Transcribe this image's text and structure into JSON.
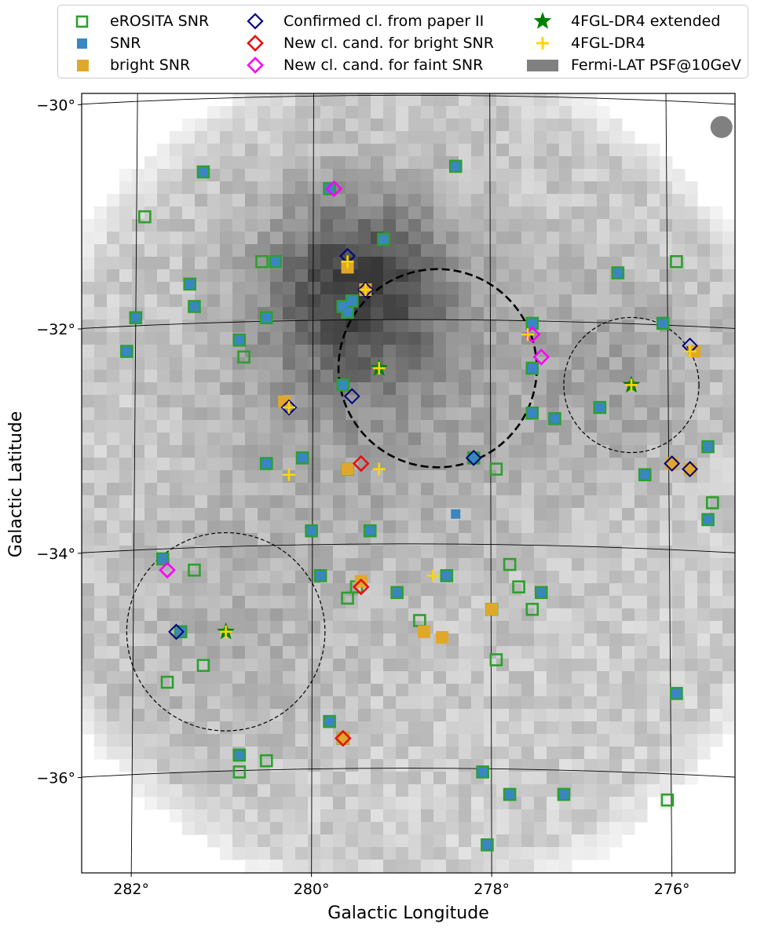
{
  "chart_data": {
    "type": "scatter",
    "xlabel": "Galactic Longitude",
    "ylabel": "Galactic Latitude",
    "xlim": [
      282.55,
      275.3
    ],
    "ylim": [
      -36.85,
      -29.9
    ],
    "x_ticks": [
      {
        "value": 282,
        "label": "282°"
      },
      {
        "value": 280,
        "label": "280°"
      },
      {
        "value": 278,
        "label": "278°"
      },
      {
        "value": 276,
        "label": "276°"
      }
    ],
    "y_ticks": [
      {
        "value": -30,
        "label": "−30°"
      },
      {
        "value": -32,
        "label": "−32°"
      },
      {
        "value": -34,
        "label": "−34°"
      },
      {
        "value": -36,
        "label": "−36°"
      }
    ],
    "grid": true,
    "background": "grayscale counts map (Fermi-LAT)",
    "psf_marker": {
      "l": 275.45,
      "b": -30.2,
      "color": "#808080"
    },
    "regions": [
      {
        "l": 278.6,
        "b": -32.35,
        "radius": 1.1,
        "style": "thick-dashed"
      },
      {
        "l": 276.45,
        "b": -32.5,
        "radius": 0.75,
        "style": "thin-dashed"
      },
      {
        "l": 280.95,
        "b": -34.7,
        "radius": 1.1,
        "style": "thin-dashed"
      }
    ],
    "legend": {
      "placement": "top, above plot, 3 columns",
      "entries": [
        {
          "key": "erosita",
          "label": "eROSITA SNR",
          "color": "#2ca02c",
          "marker": "open-square"
        },
        {
          "key": "snr",
          "label": "SNR",
          "color": "#3a86c0",
          "marker": "filled-square"
        },
        {
          "key": "bright",
          "label": "bright SNR",
          "color": "#e0a82a",
          "marker": "filled-square"
        },
        {
          "key": "confirmed",
          "label": "Confirmed cl. from paper II",
          "color": "#000080",
          "marker": "open-diamond"
        },
        {
          "key": "cand_bright",
          "label": "New cl. cand. for bright SNR",
          "color": "#e81010",
          "marker": "open-diamond"
        },
        {
          "key": "cand_faint",
          "label": "New cl. cand. for faint SNR",
          "color": "#ff00ff",
          "marker": "open-diamond"
        },
        {
          "key": "fgl_ext",
          "label": "4FGL-DR4 extended",
          "color": "#008000",
          "marker": "star"
        },
        {
          "key": "fgl",
          "label": "4FGL-DR4",
          "color": "#ffd700",
          "marker": "plus"
        },
        {
          "key": "psf",
          "label": "Fermi-LAT PSF@10GeV",
          "color": "#808080",
          "marker": "patch"
        }
      ]
    },
    "series": [
      {
        "key": "erosita",
        "points": [
          [
            281.2,
            -30.6
          ],
          [
            281.85,
            -31.0
          ],
          [
            280.55,
            -31.4
          ],
          [
            280.4,
            -31.4
          ],
          [
            281.35,
            -31.6
          ],
          [
            281.3,
            -31.8
          ],
          [
            281.95,
            -31.9
          ],
          [
            280.5,
            -31.9
          ],
          [
            282.05,
            -32.2
          ],
          [
            280.8,
            -32.1
          ],
          [
            280.75,
            -32.25
          ],
          [
            279.8,
            -30.75
          ],
          [
            279.65,
            -31.8
          ],
          [
            279.6,
            -31.85
          ],
          [
            279.55,
            -31.75
          ],
          [
            279.2,
            -31.2
          ],
          [
            278.4,
            -30.55
          ],
          [
            276.6,
            -31.5
          ],
          [
            275.95,
            -31.4
          ],
          [
            276.1,
            -31.95
          ],
          [
            277.55,
            -31.95
          ],
          [
            277.55,
            -32.35
          ],
          [
            277.55,
            -32.75
          ],
          [
            277.3,
            -32.8
          ],
          [
            276.8,
            -32.7
          ],
          [
            279.65,
            -32.5
          ],
          [
            280.5,
            -33.2
          ],
          [
            280.1,
            -33.15
          ],
          [
            280.0,
            -33.8
          ],
          [
            279.35,
            -33.8
          ],
          [
            278.2,
            -33.15
          ],
          [
            277.95,
            -33.25
          ],
          [
            276.3,
            -33.3
          ],
          [
            275.6,
            -33.05
          ],
          [
            275.55,
            -33.55
          ],
          [
            275.6,
            -33.7
          ],
          [
            279.6,
            -33.25
          ],
          [
            281.65,
            -34.05
          ],
          [
            281.3,
            -34.15
          ],
          [
            281.45,
            -34.7
          ],
          [
            281.2,
            -35.0
          ],
          [
            281.6,
            -35.15
          ],
          [
            279.9,
            -34.2
          ],
          [
            279.5,
            -34.3
          ],
          [
            279.6,
            -34.4
          ],
          [
            279.05,
            -34.35
          ],
          [
            278.8,
            -34.6
          ],
          [
            278.5,
            -34.2
          ],
          [
            278.0,
            -34.5
          ],
          [
            277.8,
            -34.1
          ],
          [
            277.7,
            -34.3
          ],
          [
            277.45,
            -34.35
          ],
          [
            277.55,
            -34.5
          ],
          [
            277.95,
            -34.95
          ],
          [
            279.8,
            -35.5
          ],
          [
            279.65,
            -35.65
          ],
          [
            280.8,
            -35.8
          ],
          [
            280.5,
            -35.85
          ],
          [
            280.8,
            -35.95
          ],
          [
            278.1,
            -35.95
          ],
          [
            277.8,
            -36.15
          ],
          [
            277.2,
            -36.15
          ],
          [
            278.05,
            -36.6
          ],
          [
            275.95,
            -35.25
          ],
          [
            276.05,
            -36.2
          ]
        ]
      },
      {
        "key": "snr",
        "points": [
          [
            281.2,
            -30.6
          ],
          [
            280.4,
            -31.4
          ],
          [
            281.35,
            -31.6
          ],
          [
            281.3,
            -31.8
          ],
          [
            281.95,
            -31.9
          ],
          [
            280.5,
            -31.9
          ],
          [
            282.05,
            -32.2
          ],
          [
            280.8,
            -32.1
          ],
          [
            279.8,
            -30.75
          ],
          [
            279.65,
            -31.8
          ],
          [
            279.6,
            -31.85
          ],
          [
            279.55,
            -31.75
          ],
          [
            279.2,
            -31.2
          ],
          [
            278.4,
            -30.55
          ],
          [
            276.6,
            -31.5
          ],
          [
            276.1,
            -31.95
          ],
          [
            277.55,
            -31.95
          ],
          [
            277.55,
            -32.35
          ],
          [
            277.55,
            -32.75
          ],
          [
            277.3,
            -32.8
          ],
          [
            276.8,
            -32.7
          ],
          [
            279.65,
            -32.5
          ],
          [
            280.5,
            -33.2
          ],
          [
            280.1,
            -33.15
          ],
          [
            280.0,
            -33.8
          ],
          [
            279.35,
            -33.8
          ],
          [
            278.2,
            -33.15
          ],
          [
            276.3,
            -33.3
          ],
          [
            275.6,
            -33.05
          ],
          [
            275.6,
            -33.7
          ],
          [
            278.4,
            -33.65
          ],
          [
            281.65,
            -34.05
          ],
          [
            281.45,
            -34.7
          ],
          [
            279.9,
            -34.2
          ],
          [
            279.05,
            -34.35
          ],
          [
            278.5,
            -34.2
          ],
          [
            277.45,
            -34.35
          ],
          [
            279.8,
            -35.5
          ],
          [
            280.8,
            -35.8
          ],
          [
            278.1,
            -35.95
          ],
          [
            277.8,
            -36.15
          ],
          [
            277.2,
            -36.15
          ],
          [
            278.05,
            -36.6
          ],
          [
            275.95,
            -35.25
          ]
        ]
      },
      {
        "key": "bright",
        "points": [
          [
            279.6,
            -31.45
          ],
          [
            279.4,
            -31.65
          ],
          [
            280.3,
            -32.65
          ],
          [
            279.6,
            -33.25
          ],
          [
            275.75,
            -32.2
          ],
          [
            276.0,
            -33.2
          ],
          [
            275.8,
            -33.25
          ],
          [
            279.45,
            -34.25
          ],
          [
            278.75,
            -34.7
          ],
          [
            278.55,
            -34.75
          ],
          [
            278.0,
            -34.5
          ],
          [
            279.65,
            -35.65
          ]
        ]
      },
      {
        "key": "confirmed",
        "points": [
          [
            279.6,
            -31.35
          ],
          [
            279.4,
            -31.65
          ],
          [
            280.25,
            -32.7
          ],
          [
            279.55,
            -32.6
          ],
          [
            278.2,
            -33.15
          ],
          [
            276.0,
            -33.2
          ],
          [
            275.8,
            -33.25
          ],
          [
            275.8,
            -32.15
          ],
          [
            281.5,
            -34.7
          ]
        ]
      },
      {
        "key": "cand_bright",
        "points": [
          [
            279.45,
            -33.2
          ],
          [
            279.45,
            -34.3
          ],
          [
            279.65,
            -35.65
          ]
        ]
      },
      {
        "key": "cand_faint",
        "points": [
          [
            279.75,
            -30.75
          ],
          [
            277.55,
            -32.05
          ],
          [
            277.45,
            -32.25
          ],
          [
            281.6,
            -34.15
          ]
        ]
      },
      {
        "key": "fgl_ext",
        "points": [
          [
            279.25,
            -32.35
          ],
          [
            276.45,
            -32.5
          ],
          [
            280.95,
            -34.7
          ]
        ]
      },
      {
        "key": "fgl",
        "points": [
          [
            279.6,
            -31.4
          ],
          [
            279.4,
            -31.65
          ],
          [
            279.25,
            -32.35
          ],
          [
            280.25,
            -32.7
          ],
          [
            280.25,
            -33.3
          ],
          [
            279.25,
            -33.25
          ],
          [
            277.6,
            -32.05
          ],
          [
            275.8,
            -32.2
          ],
          [
            276.45,
            -32.5
          ],
          [
            278.65,
            -34.2
          ],
          [
            280.95,
            -34.7
          ]
        ]
      }
    ]
  }
}
